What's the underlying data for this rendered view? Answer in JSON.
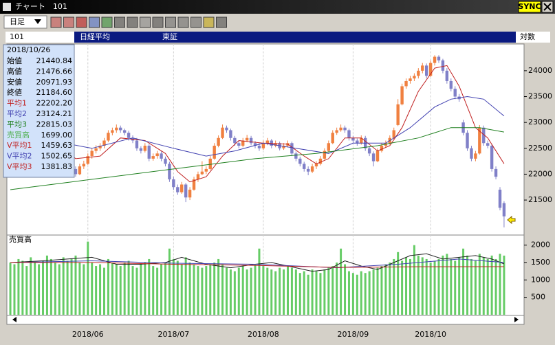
{
  "window": {
    "title": "チャート　101",
    "sync": "SYNC"
  },
  "toolbar": {
    "period": "日足"
  },
  "header": {
    "code": "101",
    "name": "日経平均",
    "market": "東証",
    "scale": "対数"
  },
  "info": {
    "date": "2018/10/26",
    "rows": [
      {
        "label": "始値",
        "value": "21440.84",
        "color": "#000000"
      },
      {
        "label": "高値",
        "value": "21476.66",
        "color": "#000000"
      },
      {
        "label": "安値",
        "value": "20971.93",
        "color": "#000000"
      },
      {
        "label": "終値",
        "value": "21184.60",
        "color": "#000000"
      },
      {
        "label": "平均1",
        "value": "22202.20",
        "color": "#c02020"
      },
      {
        "label": "平均2",
        "value": "23124.21",
        "color": "#4040b0"
      },
      {
        "label": "平均3",
        "value": "22815.03",
        "color": "#208020"
      },
      {
        "label": "売買高",
        "value": "1699.00",
        "color": "#50b050"
      },
      {
        "label": "V平均1",
        "value": "1459.63",
        "color": "#c02020"
      },
      {
        "label": "V平均2",
        "value": "1502.65",
        "color": "#4040b0"
      },
      {
        "label": "V平均3",
        "value": "1381.83",
        "color": "#c02020"
      }
    ]
  },
  "chart_data": [
    {
      "type": "candlestick",
      "up_color": "#f08040",
      "down_color": "#8080c8",
      "xlim": [
        -0.85,
        125.9
      ],
      "ylim": [
        20850,
        24490
      ],
      "yticks": [
        21500,
        22000,
        22500,
        23000,
        23500,
        24000
      ],
      "xticks": [
        {
          "value": 19,
          "label": "2018/06"
        },
        {
          "value": 40,
          "label": "2018/07"
        },
        {
          "value": 62,
          "label": "2018/08"
        },
        {
          "value": 84,
          "label": "2018/09"
        },
        {
          "value": 103,
          "label": "2018/10"
        }
      ],
      "grid": true,
      "ohlc": [
        [
          22400,
          22480,
          22350,
          22450
        ],
        [
          22450,
          22550,
          22400,
          22500
        ],
        [
          22500,
          22650,
          22470,
          22600
        ],
        [
          22600,
          22720,
          22560,
          22680
        ],
        [
          22680,
          22760,
          22640,
          22700
        ],
        [
          22700,
          22800,
          22660,
          22750
        ],
        [
          22750,
          22850,
          22700,
          22800
        ],
        [
          22800,
          22830,
          22680,
          22720
        ],
        [
          22720,
          22760,
          22600,
          22650
        ],
        [
          22650,
          22690,
          22560,
          22600
        ],
        [
          22600,
          22640,
          22500,
          22550
        ],
        [
          22550,
          22590,
          22440,
          22480
        ],
        [
          22480,
          22520,
          22360,
          22400
        ],
        [
          22400,
          22440,
          22260,
          22300
        ],
        [
          22300,
          22350,
          22160,
          22200
        ],
        [
          22200,
          22240,
          22060,
          22100
        ],
        [
          22100,
          22150,
          21950,
          22000
        ],
        [
          22000,
          22200,
          21980,
          22150
        ],
        [
          22150,
          22260,
          22100,
          22200
        ],
        [
          22200,
          22400,
          22180,
          22350
        ],
        [
          22350,
          22500,
          22300,
          22450
        ],
        [
          22450,
          22560,
          22400,
          22500
        ],
        [
          22500,
          22600,
          22450,
          22550
        ],
        [
          22550,
          22700,
          22500,
          22650
        ],
        [
          22650,
          22850,
          22620,
          22800
        ],
        [
          22800,
          22900,
          22750,
          22850
        ],
        [
          22850,
          22960,
          22800,
          22900
        ],
        [
          22900,
          22940,
          22800,
          22850
        ],
        [
          22850,
          22880,
          22750,
          22800
        ],
        [
          22800,
          22840,
          22650,
          22700
        ],
        [
          22700,
          22750,
          22600,
          22650
        ],
        [
          22650,
          22700,
          22450,
          22500
        ],
        [
          22500,
          22540,
          22400,
          22450
        ],
        [
          22450,
          22600,
          22420,
          22550
        ],
        [
          22550,
          22580,
          22250,
          22300
        ],
        [
          22300,
          22400,
          22260,
          22350
        ],
        [
          22350,
          22450,
          22300,
          22400
        ],
        [
          22400,
          22440,
          22250,
          22300
        ],
        [
          22300,
          22340,
          22150,
          22200
        ],
        [
          22200,
          22240,
          21850,
          21900
        ],
        [
          21900,
          21950,
          21700,
          21750
        ],
        [
          21750,
          21800,
          21600,
          21650
        ],
        [
          21650,
          21850,
          21620,
          21800
        ],
        [
          21800,
          21830,
          21460,
          21550
        ],
        [
          21550,
          21750,
          21500,
          21700
        ],
        [
          21700,
          21950,
          21680,
          21900
        ],
        [
          21900,
          22050,
          21850,
          22000
        ],
        [
          22000,
          22250,
          21980,
          22050
        ],
        [
          22050,
          22150,
          22000,
          22100
        ],
        [
          22100,
          22350,
          22080,
          22300
        ],
        [
          22300,
          22600,
          22280,
          22550
        ],
        [
          22550,
          22750,
          22520,
          22700
        ],
        [
          22700,
          22960,
          22680,
          22900
        ],
        [
          22900,
          22940,
          22800,
          22850
        ],
        [
          22850,
          22880,
          22650,
          22700
        ],
        [
          22700,
          22740,
          22550,
          22600
        ],
        [
          22600,
          22640,
          22500,
          22550
        ],
        [
          22550,
          22700,
          22520,
          22650
        ],
        [
          22650,
          22760,
          22620,
          22700
        ],
        [
          22700,
          22740,
          22560,
          22600
        ],
        [
          22600,
          22640,
          22500,
          22550
        ],
        [
          22550,
          22600,
          22450,
          22500
        ],
        [
          22500,
          22650,
          22470,
          22600
        ],
        [
          22600,
          22700,
          22560,
          22650
        ],
        [
          22650,
          22680,
          22500,
          22550
        ],
        [
          22550,
          22650,
          22520,
          22600
        ],
        [
          22600,
          22630,
          22460,
          22500
        ],
        [
          22500,
          22600,
          22470,
          22550
        ],
        [
          22550,
          22650,
          22520,
          22600
        ],
        [
          22600,
          22630,
          22350,
          22400
        ],
        [
          22400,
          22440,
          22250,
          22300
        ],
        [
          22300,
          22340,
          22150,
          22200
        ],
        [
          22200,
          22240,
          22050,
          22100
        ],
        [
          22100,
          22150,
          21980,
          22050
        ],
        [
          22050,
          22200,
          22020,
          22150
        ],
        [
          22150,
          22250,
          22100,
          22200
        ],
        [
          22200,
          22350,
          22170,
          22300
        ],
        [
          22300,
          22500,
          22280,
          22450
        ],
        [
          22450,
          22650,
          22420,
          22600
        ],
        [
          22600,
          22850,
          22580,
          22800
        ],
        [
          22800,
          22900,
          22760,
          22850
        ],
        [
          22850,
          22960,
          22820,
          22900
        ],
        [
          22900,
          22940,
          22800,
          22850
        ],
        [
          22850,
          22880,
          22650,
          22700
        ],
        [
          22700,
          22740,
          22600,
          22650
        ],
        [
          22650,
          22690,
          22550,
          22600
        ],
        [
          22600,
          22750,
          22570,
          22700
        ],
        [
          22700,
          22740,
          22450,
          22500
        ],
        [
          22500,
          22540,
          22350,
          22400
        ],
        [
          22400,
          22440,
          22150,
          22250
        ],
        [
          22250,
          22500,
          22230,
          22450
        ],
        [
          22450,
          22600,
          22420,
          22550
        ],
        [
          22550,
          22650,
          22520,
          22600
        ],
        [
          22600,
          22750,
          22570,
          22700
        ],
        [
          22700,
          22900,
          22680,
          22850
        ],
        [
          22950,
          23450,
          22930,
          23350
        ],
        [
          23350,
          23750,
          23330,
          23700
        ],
        [
          23700,
          23850,
          23650,
          23800
        ],
        [
          23800,
          23900,
          23750,
          23850
        ],
        [
          23850,
          23950,
          23800,
          23900
        ],
        [
          23900,
          24050,
          23850,
          24000
        ],
        [
          24000,
          24150,
          23950,
          24100
        ],
        [
          24100,
          24140,
          23850,
          23900
        ],
        [
          23900,
          24200,
          23880,
          24150
        ],
        [
          24150,
          24300,
          24100,
          24270
        ],
        [
          24270,
          24300,
          24150,
          24200
        ],
        [
          24200,
          24230,
          23950,
          24000
        ],
        [
          24000,
          24050,
          23750,
          23800
        ],
        [
          23800,
          23850,
          23600,
          23650
        ],
        [
          23650,
          23700,
          23450,
          23500
        ],
        [
          23500,
          23550,
          23400,
          23450
        ],
        [
          23000,
          23050,
          22750,
          22800
        ],
        [
          22800,
          22850,
          22450,
          22500
        ],
        [
          22500,
          22550,
          22250,
          22300
        ],
        [
          22300,
          22450,
          22250,
          22400
        ],
        [
          22400,
          22950,
          22380,
          22900
        ],
        [
          22900,
          22940,
          22550,
          22600
        ],
        [
          22600,
          22650,
          22500,
          22550
        ],
        [
          22550,
          22580,
          22050,
          22100
        ],
        [
          22100,
          22150,
          21900,
          21950
        ],
        [
          21700,
          21750,
          21300,
          21350
        ],
        [
          21440.84,
          21476.66,
          20971.93,
          21184.6
        ]
      ],
      "lines": [
        {
          "color": "#c02020",
          "x": [
            0,
            10,
            16,
            22,
            27,
            33,
            38,
            41,
            44,
            48,
            52,
            56,
            62,
            68,
            72,
            75,
            78,
            82,
            86,
            90,
            93,
            96,
            100,
            104,
            107,
            110,
            114,
            117,
            121
          ],
          "values": [
            22550,
            22700,
            22300,
            22350,
            22700,
            22650,
            22400,
            22050,
            21850,
            21950,
            22350,
            22650,
            22600,
            22580,
            22350,
            22200,
            22300,
            22700,
            22700,
            22450,
            22550,
            22900,
            23600,
            24050,
            24100,
            23700,
            22900,
            22700,
            22202.2
          ]
        },
        {
          "color": "#4040b0",
          "x": [
            0,
            10,
            20,
            30,
            40,
            48,
            55,
            62,
            70,
            78,
            84,
            92,
            98,
            104,
            108,
            112,
            116,
            121
          ],
          "values": [
            22600,
            22650,
            22500,
            22700,
            22500,
            22350,
            22450,
            22600,
            22500,
            22400,
            22600,
            22600,
            22900,
            23300,
            23450,
            23500,
            23450,
            23124.21
          ]
        },
        {
          "color": "#208020",
          "x": [
            0,
            15,
            30,
            45,
            60,
            75,
            90,
            100,
            108,
            115,
            121
          ],
          "values": [
            21700,
            21850,
            22000,
            22150,
            22300,
            22400,
            22550,
            22700,
            22900,
            22900,
            22815.03
          ]
        }
      ]
    },
    {
      "type": "bar",
      "title": "売買高",
      "color": "#66cc66",
      "ylim": [
        0,
        2250
      ],
      "yticks": [
        500,
        1000,
        1500,
        2000
      ],
      "values": [
        1500,
        1450,
        1600,
        1550,
        1400,
        1650,
        1500,
        1450,
        1550,
        1700,
        1600,
        1500,
        1450,
        1650,
        1550,
        1600,
        1700,
        1500,
        1450,
        2100,
        1500,
        1400,
        1450,
        1350,
        1600,
        1500,
        1450,
        1400,
        1500,
        1550,
        1400,
        1350,
        1450,
        1500,
        1600,
        1400,
        1350,
        1450,
        1500,
        1900,
        1600,
        1550,
        1450,
        1650,
        1500,
        1450,
        1400,
        1350,
        1400,
        1450,
        1500,
        1600,
        1450,
        1350,
        1300,
        1250,
        1350,
        1400,
        1300,
        1350,
        1450,
        1900,
        1400,
        1350,
        1300,
        1250,
        1350,
        1300,
        1400,
        1350,
        1300,
        1200,
        1250,
        1150,
        1300,
        1250,
        1200,
        1300,
        1350,
        1400,
        1500,
        1900,
        1450,
        1250,
        1200,
        1150,
        1250,
        1200,
        1250,
        1300,
        1350,
        1400,
        1450,
        1500,
        1600,
        1800,
        1550,
        1650,
        1600,
        2000,
        1700,
        1650,
        1600,
        1500,
        1550,
        1600,
        1700,
        1750,
        1600,
        1550,
        1650,
        1900,
        1700,
        1600,
        1550,
        1750,
        1650,
        1600,
        1700,
        1600,
        1750,
        1699
      ],
      "lines": [
        {
          "color": "#202020",
          "x": [
            0,
            8,
            14,
            20,
            26,
            32,
            38,
            42,
            48,
            54,
            60,
            64,
            70,
            74,
            78,
            82,
            86,
            90,
            94,
            98,
            102,
            106,
            110,
            114,
            118,
            121
          ],
          "values": [
            1500,
            1550,
            1600,
            1650,
            1450,
            1450,
            1500,
            1650,
            1450,
            1350,
            1450,
            1500,
            1350,
            1250,
            1300,
            1550,
            1400,
            1300,
            1500,
            1700,
            1750,
            1600,
            1650,
            1700,
            1600,
            1459.63
          ]
        },
        {
          "color": "#4040b0",
          "x": [
            0,
            20,
            40,
            60,
            80,
            95,
            110,
            121
          ],
          "values": [
            1500,
            1550,
            1480,
            1450,
            1350,
            1450,
            1600,
            1502.65
          ]
        },
        {
          "color": "#c02020",
          "x": [
            0,
            20,
            40,
            60,
            80,
            100,
            121
          ],
          "values": [
            1500,
            1500,
            1450,
            1420,
            1360,
            1380,
            1381.83
          ]
        }
      ]
    }
  ]
}
